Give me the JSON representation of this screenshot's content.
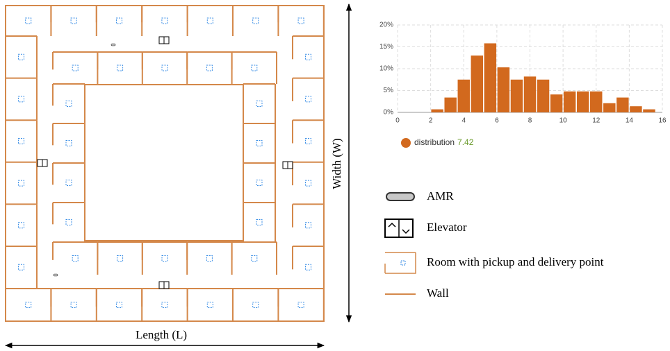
{
  "diagram": {
    "length_label": "Length (L)",
    "width_label": "Width (W)"
  },
  "legend": [
    {
      "label": "AMR"
    },
    {
      "label": "Elevator"
    },
    {
      "label": "Room with pickup and delivery point"
    },
    {
      "label": "Wall"
    }
  ],
  "chart_data": {
    "type": "histogram",
    "bins": [
      2,
      2.8,
      3.6,
      4.4,
      5.2,
      6,
      6.8,
      7.6,
      8.4,
      9.2,
      10,
      10.8,
      11.6,
      12.4,
      13.2,
      14,
      14.8,
      15.6
    ],
    "series": [
      {
        "name": "distribution",
        "color": "#d2691e",
        "summary": 7.42,
        "values": [
          0.7,
          3.4,
          7.5,
          13,
          15.8,
          10.3,
          7.5,
          8.2,
          7.5,
          4.1,
          4.8,
          4.8,
          4.8,
          2.1,
          3.4,
          1.4,
          0.7
        ]
      }
    ],
    "xlim": [
      0,
      16
    ],
    "xticks": [
      0,
      2,
      4,
      6,
      8,
      10,
      12,
      14,
      16
    ],
    "ylim": [
      0,
      20
    ],
    "yticks": [
      {
        "value": 0,
        "label": "0%"
      },
      {
        "value": 5,
        "label": "5%"
      },
      {
        "value": 10,
        "label": "10%"
      },
      {
        "value": 15,
        "label": "15%"
      },
      {
        "value": 20,
        "label": "20%"
      }
    ],
    "grid": true
  }
}
